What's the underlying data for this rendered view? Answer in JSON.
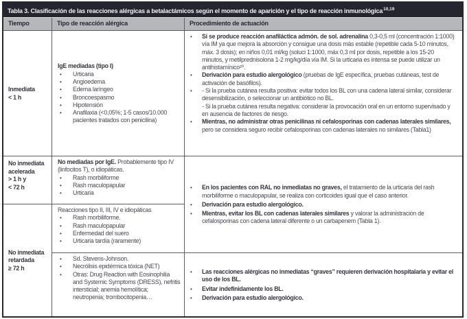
{
  "colors": {
    "title_bar_bg": "#24262f",
    "title_text": "#f1f1f3",
    "header_bg": "#b5b7bb",
    "body_text": "#45484f",
    "border": "#5a5c61"
  },
  "bullet_char": "•",
  "table": {
    "title": "Tabla 3. Clasificación de las reacciones alérgicas a betalactámicos según el momento de aparición y el tipo de reacción inmunológica",
    "title_sup": "10,19",
    "columns": [
      "Tiempo",
      "Tipo de reacción alérgica",
      "Procedimiento de actuación"
    ],
    "tiempo": {
      "r1": [
        "Inmediata",
        "< 1 h"
      ],
      "r2": [
        "No inmediata",
        "acelerada",
        "> 1 h y",
        "< 72 h"
      ],
      "r3": [
        "No inmediata",
        "retardada",
        "≥ 72 h"
      ]
    },
    "tipo": {
      "r1": {
        "heading": {
          "bold": "IgE mediadas (tipo I)"
        },
        "bullets": [
          {
            "text": "Urticaria"
          },
          {
            "text": "Angioedema"
          },
          {
            "text": "Edema laríngeo"
          },
          {
            "text": "Broncoespasmo"
          },
          {
            "text": "Hipotensión"
          },
          {
            "text": "Anafilaxia (<0,05%; 1-5 casos/10.000 pacientes tratados con penicilina)"
          }
        ]
      },
      "r2": {
        "heading": {
          "bold": "No mediadas por IgE.",
          "text": " Probablemente tipo IV (linfocitos T), o idiopáticas."
        },
        "bullets": [
          {
            "text": "Rash morbiliforme"
          },
          {
            "text": "Rash maculopapular"
          },
          {
            "text": "Urticaria"
          }
        ]
      },
      "r3": {
        "heading": {
          "text": "Reacciones tipo II, III, IV e idiopáticas"
        },
        "bullets": [
          {
            "text": "Rash morbiliforme."
          },
          {
            "text": "Rash maculopapular"
          },
          {
            "text": "Enfermedad del suero"
          },
          {
            "text": "Urticaria tardía (raramente)"
          }
        ]
      },
      "r4": {
        "bullets": [
          {
            "text": "Sd. Stevens-Johnson."
          },
          {
            "text": "Necrólisis epidérmica tóxica (NET)"
          },
          {
            "text": "Otras: Drug Reaction with Eosinophilia and Systemic Symptoms (DRESS), nefritis intersticial; anemia hemolítica; neutropenia; trombocitopenia…"
          }
        ]
      }
    },
    "proc": {
      "r1": {
        "bullets": [
          {
            "bold": "Si se produce reacción anafiláctica admón. de sol. adrenalina",
            "text": " 0,3-0,5 ml (concentración 1:1000) vía IM ya que mejora la absorción y consigue una dosis más estable (repetible cada 5-10 minutos, máx. 3 dosis); en niños 0,01 ml/kg (soluci 1:1000, máx 0,3 ml por dosis, repetible a los 15-20 minutos, y metilprednisolona 1-2 mg/kg/día vía IM. Si la urticaria es intensa se puede utilizar un antihistamínico²⁰."
          },
          {
            "bold": "Derivación para estudio alergológico",
            "text": " (pruebas de IgE específica, pruebas cutáneas, test de activación de basófilos)."
          },
          {
            "text": "- Si la prueba cutánea resulta positiva: evitar todos los BL con una cadena lateral similar, considerar desensibilización, o seleccionar un antibiótico no BL.\n- Si la prueba cutánea resulta negativa: considerar la provocación oral en un entorno supervisado y en ausencia de factores de riesgo."
          },
          {
            "bold": "Mientras, no administrar otras penicilinas ni cefalosporinas con cadenas laterales similares,",
            "text": " pero se considera seguro recibir cefalosporinas con cadenas laterales no similares (Tabla1)"
          }
        ]
      },
      "r2": {
        "bullets": [
          {
            "bold": "En los pacientes con RAL no inmediatas no graves,",
            "text": " el tratamiento de la urticaria del rash morbiliforme o maculopapular, se realiza con corticoides igual que el caso anterior."
          },
          {
            "bold": "Derivación para estudio alergológico."
          },
          {
            "bold": "Mientras, evitar los BL con cadenas laterales similares",
            "text": " y valorar la administración de cefalosporinas con cadena lateral diferente o un carbapenem (Tabla 1)."
          }
        ]
      },
      "r3": {
        "bullets": [
          {
            "bold": "Las reacciones alérgicas no inmediatas “graves” requieren derivación hospitalaria y evitar el uso de los BL."
          },
          {
            "bold": "Evitar indefinidamente los BL."
          },
          {
            "bold": "Derivación para estudio alergológico."
          }
        ]
      }
    }
  }
}
